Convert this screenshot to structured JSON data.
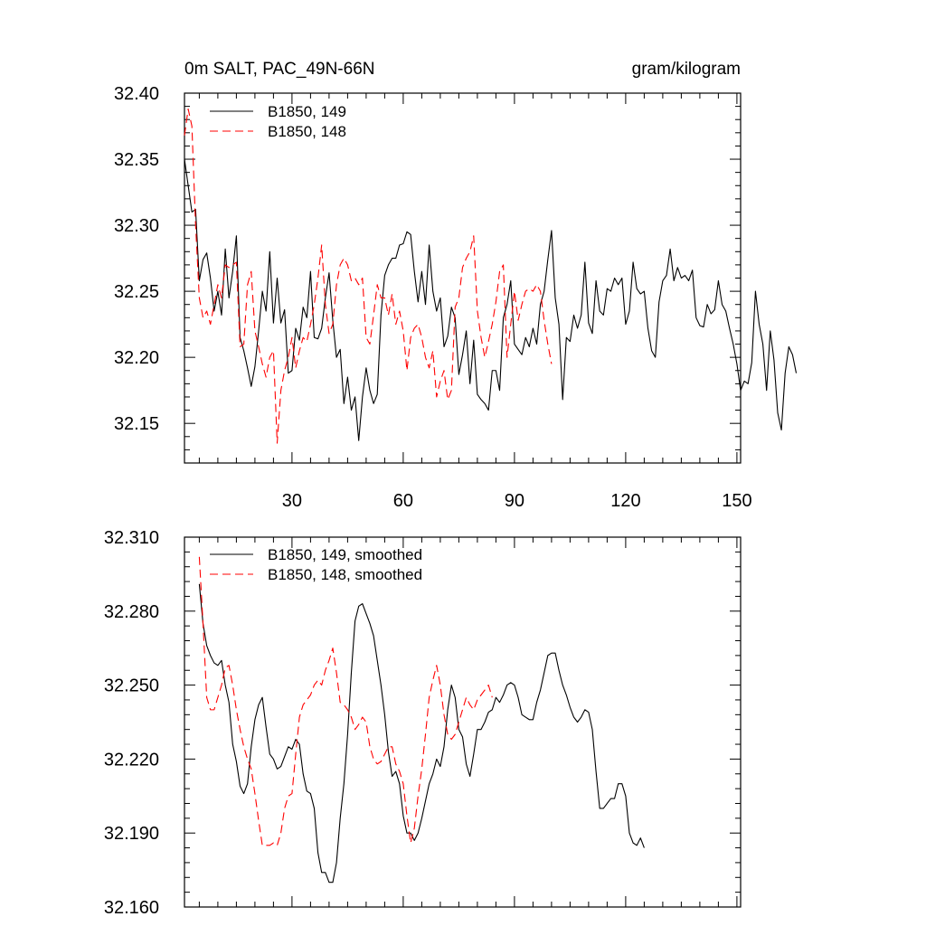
{
  "chart_data": [
    {
      "type": "line",
      "title_left": "0m SALT, PAC_49N-66N",
      "title_right": "gram/kilogram",
      "xlabel": "",
      "ylabel": "",
      "xlim": [
        1,
        151
      ],
      "ylim": [
        32.12,
        32.4
      ],
      "xticks": [
        30,
        60,
        90,
        120,
        150
      ],
      "xtick_labels": [
        "30",
        "60",
        "90",
        "120",
        "150"
      ],
      "yticks": [
        32.15,
        32.2,
        32.25,
        32.3,
        32.35,
        32.4
      ],
      "ytick_labels": [
        "32.15",
        "32.20",
        "32.25",
        "32.30",
        "32.35",
        "32.40"
      ],
      "legend_position": "top-left",
      "series": [
        {
          "name": "B1850, 149",
          "color": "#000000",
          "dash": "solid",
          "x_start": 1,
          "values": [
            32.35,
            32.33,
            32.31,
            32.312,
            32.258,
            32.274,
            32.279,
            32.26,
            32.235,
            32.25,
            32.232,
            32.282,
            32.245,
            32.265,
            32.292,
            32.215,
            32.205,
            32.192,
            32.178,
            32.193,
            32.22,
            32.25,
            32.235,
            32.28,
            32.226,
            32.26,
            32.226,
            32.236,
            32.188,
            32.19,
            32.222,
            32.213,
            32.238,
            32.23,
            32.265,
            32.215,
            32.214,
            32.222,
            32.245,
            32.264,
            32.228,
            32.2,
            32.206,
            32.165,
            32.185,
            32.16,
            32.17,
            32.137,
            32.17,
            32.192,
            32.175,
            32.165,
            32.172,
            32.232,
            32.262,
            32.27,
            32.275,
            32.275,
            32.285,
            32.286,
            32.295,
            32.293,
            32.265,
            32.242,
            32.265,
            32.24,
            32.285,
            32.25,
            32.235,
            32.245,
            32.208,
            32.216,
            32.238,
            32.23,
            32.187,
            32.202,
            32.22,
            32.18,
            32.213,
            32.172,
            32.168,
            32.165,
            32.16,
            32.19,
            32.19,
            32.175,
            32.23,
            32.24,
            32.258,
            32.21,
            32.206,
            32.202,
            32.215,
            32.208,
            32.222,
            32.21,
            32.24,
            32.25,
            32.274,
            32.296,
            32.245,
            32.225,
            32.168,
            32.215,
            32.212,
            32.232,
            32.222,
            32.232,
            32.272,
            32.226,
            32.218,
            32.258,
            32.235,
            32.232,
            32.252,
            32.25,
            32.26,
            32.255,
            32.26,
            32.225,
            32.235,
            32.272,
            32.252,
            32.248,
            32.25,
            32.222,
            32.205,
            32.2,
            32.242,
            32.258,
            32.262,
            32.282,
            32.258,
            32.268,
            32.26,
            32.262,
            32.258,
            32.266,
            32.23,
            32.224,
            32.223,
            32.24,
            32.233,
            32.236,
            32.258,
            32.24,
            32.235,
            32.222,
            32.21,
            32.195,
            32.175,
            32.182,
            32.18,
            32.196,
            32.25,
            32.225,
            32.21,
            32.175,
            32.22,
            32.198,
            32.158,
            32.145,
            32.188,
            32.208,
            32.202,
            32.188
          ]
        },
        {
          "name": "B1850, 148",
          "color": "#ff0000",
          "dash": "dashed",
          "x_start": 1,
          "values": [
            32.368,
            32.388,
            32.375,
            32.3,
            32.245,
            32.23,
            32.235,
            32.225,
            32.24,
            32.255,
            32.245,
            32.27,
            32.268,
            32.27,
            32.272,
            32.208,
            32.21,
            32.255,
            32.265,
            32.22,
            32.208,
            32.195,
            32.185,
            32.2,
            32.205,
            32.135,
            32.175,
            32.19,
            32.2,
            32.215,
            32.192,
            32.205,
            32.215,
            32.212,
            32.225,
            32.24,
            32.26,
            32.285,
            32.24,
            32.218,
            32.225,
            32.255,
            32.27,
            32.275,
            32.27,
            32.258,
            32.26,
            32.255,
            32.26,
            32.215,
            32.21,
            32.232,
            32.255,
            32.245,
            32.245,
            32.232,
            32.248,
            32.225,
            32.235,
            32.22,
            32.19,
            32.215,
            32.222,
            32.225,
            32.215,
            32.2,
            32.192,
            32.205,
            32.17,
            32.182,
            32.19,
            32.168,
            32.175,
            32.238,
            32.245,
            32.268,
            32.275,
            32.28,
            32.292,
            32.235,
            32.215,
            32.2,
            32.212,
            32.225,
            32.242,
            32.265,
            32.27,
            32.2,
            32.225,
            32.25,
            32.228,
            32.24,
            32.25,
            32.252,
            32.25,
            32.255,
            32.25,
            32.228,
            32.21,
            32.195
          ]
        }
      ]
    },
    {
      "type": "line",
      "title_left": "",
      "title_right": "",
      "xlabel": "",
      "ylabel": "",
      "xlim": [
        1,
        151
      ],
      "ylim": [
        32.16,
        32.31
      ],
      "xticks": [
        30,
        60,
        90,
        120,
        150
      ],
      "xtick_labels": [],
      "yticks": [
        32.16,
        32.19,
        32.22,
        32.25,
        32.28,
        32.31
      ],
      "ytick_labels": [
        "32.160",
        "32.190",
        "32.220",
        "32.250",
        "32.280",
        "32.310"
      ],
      "legend_position": "top-left",
      "series": [
        {
          "name": "B1850, 149, smoothed",
          "color": "#000000",
          "dash": "solid",
          "x_start": 5,
          "values": [
            32.291,
            32.275,
            32.266,
            32.262,
            32.259,
            32.258,
            32.26,
            32.25,
            32.243,
            32.226,
            32.219,
            32.209,
            32.206,
            32.21,
            32.225,
            32.236,
            32.242,
            32.245,
            32.233,
            32.222,
            32.22,
            32.216,
            32.217,
            32.221,
            32.225,
            32.224,
            32.228,
            32.226,
            32.214,
            32.207,
            32.206,
            32.2,
            32.182,
            32.174,
            32.174,
            32.17,
            32.17,
            32.178,
            32.196,
            32.21,
            32.23,
            32.255,
            32.276,
            32.282,
            32.283,
            32.279,
            32.275,
            32.27,
            32.26,
            32.25,
            32.238,
            32.223,
            32.213,
            32.215,
            32.21,
            32.197,
            32.19,
            32.19,
            32.187,
            32.19,
            32.196,
            32.203,
            32.21,
            32.214,
            32.22,
            32.217,
            32.225,
            32.24,
            32.25,
            32.245,
            32.232,
            32.229,
            32.218,
            32.213,
            32.222,
            32.232,
            32.232,
            32.235,
            32.239,
            32.24,
            32.245,
            32.243,
            32.246,
            32.25,
            32.251,
            32.25,
            32.245,
            32.238,
            32.237,
            32.236,
            32.236,
            32.243,
            32.248,
            32.255,
            32.262,
            32.263,
            32.263,
            32.256,
            32.25,
            32.246,
            32.241,
            32.237,
            32.235,
            32.237,
            32.24,
            32.239,
            32.232,
            32.215,
            32.2,
            32.2,
            32.202,
            32.204,
            32.204,
            32.21,
            32.21,
            32.205,
            32.19,
            32.186,
            32.185,
            32.188,
            32.184
          ]
        },
        {
          "name": "B1850, 148, smoothed",
          "color": "#ff0000",
          "dash": "dashed",
          "x_start": 5,
          "values": [
            32.302,
            32.275,
            32.245,
            32.24,
            32.24,
            32.245,
            32.25,
            32.257,
            32.258,
            32.25,
            32.24,
            32.232,
            32.225,
            32.22,
            32.216,
            32.206,
            32.195,
            32.185,
            32.185,
            32.185,
            32.186,
            32.185,
            32.19,
            32.2,
            32.205,
            32.206,
            32.222,
            32.237,
            32.242,
            32.244,
            32.246,
            32.25,
            32.252,
            32.25,
            32.256,
            32.26,
            32.265,
            32.255,
            32.243,
            32.242,
            32.24,
            32.237,
            32.232,
            32.234,
            32.237,
            32.235,
            32.225,
            32.22,
            32.218,
            32.219,
            32.222,
            32.225,
            32.225,
            32.218,
            32.215,
            32.21,
            32.197,
            32.186,
            32.192,
            32.205,
            32.216,
            32.23,
            32.245,
            32.252,
            32.258,
            32.25,
            32.238,
            32.23,
            32.228,
            32.23,
            32.235,
            32.24,
            32.245,
            32.242,
            32.24,
            32.244,
            32.246,
            32.248,
            32.25,
            32.245
          ]
        }
      ]
    }
  ]
}
